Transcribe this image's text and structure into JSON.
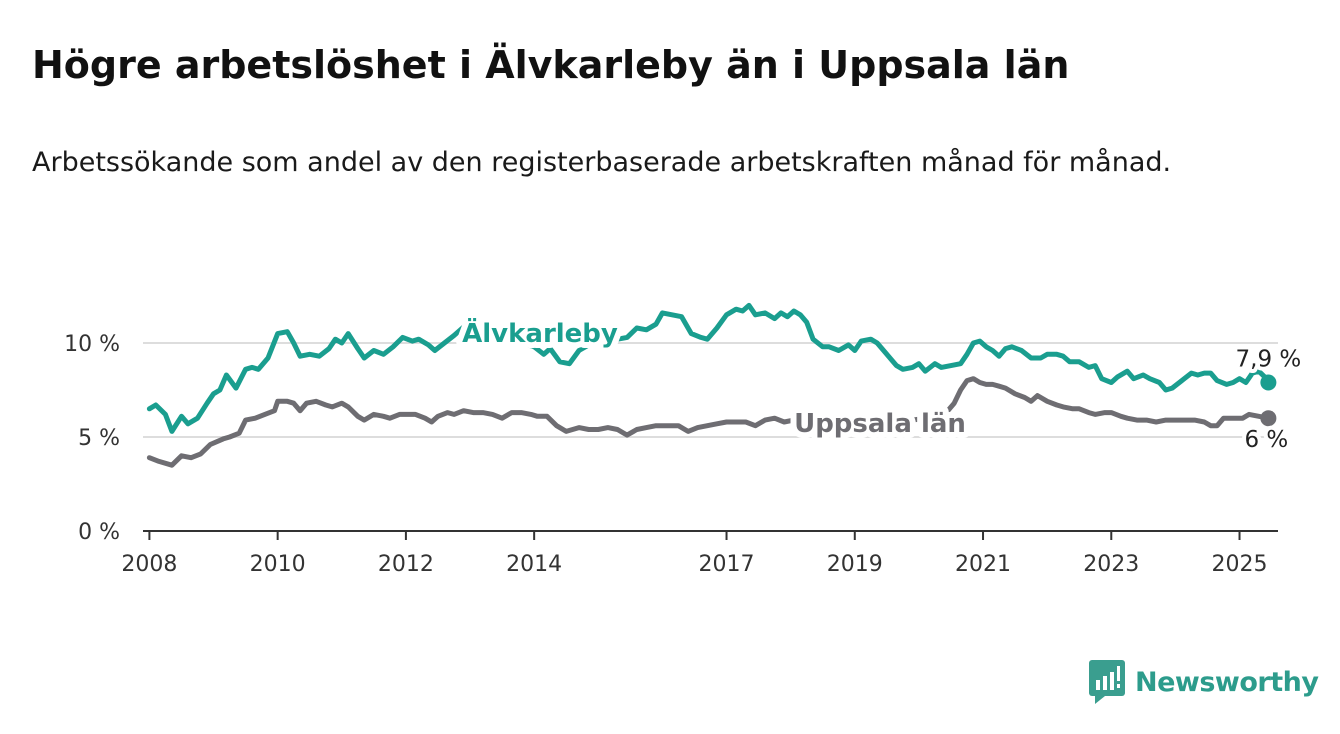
{
  "header": {
    "title": "Högre arbetslöshet i Älvkarleby än i Uppsala län",
    "subtitle": "Arbetssökande som andel av den registerbaserade arbetskraften månad för månad."
  },
  "brand": {
    "name": "Newsworthy",
    "icon": "newsworthy-logo-icon",
    "color": "#3a9e8f"
  },
  "colors": {
    "alvkarleby": "#1a9e8f",
    "uppsala": "#6e6d72",
    "axis": "#333333",
    "grid": "#dddddd"
  },
  "chart_data": {
    "type": "line",
    "x_unit": "year",
    "xlim": [
      2007.9,
      2025.6
    ],
    "ylim": [
      0,
      10
    ],
    "y_ticks": [
      {
        "value": 0,
        "label": "0 %"
      },
      {
        "value": 5,
        "label": "5 %"
      },
      {
        "value": 10,
        "label": "10 %"
      }
    ],
    "x_ticks": [
      {
        "value": 2008,
        "label": "2008"
      },
      {
        "value": 2010,
        "label": "2010"
      },
      {
        "value": 2012,
        "label": "2012"
      },
      {
        "value": 2014,
        "label": "2014"
      },
      {
        "value": 2017,
        "label": "2017"
      },
      {
        "value": 2019,
        "label": "2019"
      },
      {
        "value": 2021,
        "label": "2021"
      },
      {
        "value": 2023,
        "label": "2023"
      },
      {
        "value": 2025,
        "label": "2025"
      }
    ],
    "grid": true,
    "series": [
      {
        "key": "alvkarleby",
        "name": "Älvkarleby",
        "end_label": "7,9 %",
        "points": [
          [
            2008.0,
            6.5
          ],
          [
            2008.1,
            6.7
          ],
          [
            2008.25,
            6.2
          ],
          [
            2008.35,
            5.3
          ],
          [
            2008.5,
            6.1
          ],
          [
            2008.6,
            5.7
          ],
          [
            2008.75,
            6.0
          ],
          [
            2008.9,
            6.8
          ],
          [
            2009.0,
            7.3
          ],
          [
            2009.1,
            7.5
          ],
          [
            2009.2,
            8.3
          ],
          [
            2009.35,
            7.6
          ],
          [
            2009.5,
            8.6
          ],
          [
            2009.6,
            8.7
          ],
          [
            2009.7,
            8.6
          ],
          [
            2009.85,
            9.2
          ],
          [
            2010.0,
            10.5
          ],
          [
            2010.15,
            10.6
          ],
          [
            2010.25,
            10.0
          ],
          [
            2010.35,
            9.3
          ],
          [
            2010.5,
            9.4
          ],
          [
            2010.65,
            9.3
          ],
          [
            2010.8,
            9.7
          ],
          [
            2010.9,
            10.2
          ],
          [
            2011.0,
            10.0
          ],
          [
            2011.1,
            10.5
          ],
          [
            2011.25,
            9.7
          ],
          [
            2011.35,
            9.2
          ],
          [
            2011.5,
            9.6
          ],
          [
            2011.65,
            9.4
          ],
          [
            2011.8,
            9.8
          ],
          [
            2011.95,
            10.3
          ],
          [
            2012.1,
            10.1
          ],
          [
            2012.2,
            10.2
          ],
          [
            2012.35,
            9.9
          ],
          [
            2012.45,
            9.6
          ],
          [
            2012.6,
            10.0
          ],
          [
            2012.75,
            10.4
          ],
          [
            2012.95,
            11.0
          ],
          [
            2013.1,
            11.4
          ],
          [
            2013.25,
            10.8
          ],
          [
            2013.4,
            10.5
          ],
          [
            2013.6,
            10.2
          ],
          [
            2013.8,
            10.0
          ],
          [
            2014.0,
            9.8
          ],
          [
            2014.15,
            9.4
          ],
          [
            2014.25,
            9.7
          ],
          [
            2014.4,
            9.0
          ],
          [
            2014.55,
            8.9
          ],
          [
            2014.7,
            9.6
          ],
          [
            2014.85,
            9.9
          ],
          [
            2015.0,
            10.2
          ],
          [
            2015.15,
            10.4
          ],
          [
            2015.3,
            10.2
          ],
          [
            2015.45,
            10.3
          ],
          [
            2015.6,
            10.8
          ],
          [
            2015.75,
            10.7
          ],
          [
            2015.9,
            11.0
          ],
          [
            2016.0,
            11.6
          ],
          [
            2016.15,
            11.5
          ],
          [
            2016.3,
            11.4
          ],
          [
            2016.45,
            10.5
          ],
          [
            2016.6,
            10.3
          ],
          [
            2016.7,
            10.2
          ],
          [
            2016.85,
            10.8
          ],
          [
            2017.0,
            11.5
          ],
          [
            2017.15,
            11.8
          ],
          [
            2017.25,
            11.7
          ],
          [
            2017.35,
            12.0
          ],
          [
            2017.45,
            11.5
          ],
          [
            2017.6,
            11.6
          ],
          [
            2017.75,
            11.3
          ],
          [
            2017.85,
            11.6
          ],
          [
            2017.95,
            11.4
          ],
          [
            2018.05,
            11.7
          ],
          [
            2018.15,
            11.5
          ],
          [
            2018.25,
            11.1
          ],
          [
            2018.35,
            10.2
          ],
          [
            2018.5,
            9.8
          ],
          [
            2018.6,
            9.8
          ],
          [
            2018.75,
            9.6
          ],
          [
            2018.9,
            9.9
          ],
          [
            2019.0,
            9.6
          ],
          [
            2019.1,
            10.1
          ],
          [
            2019.25,
            10.2
          ],
          [
            2019.35,
            10.0
          ],
          [
            2019.5,
            9.4
          ],
          [
            2019.65,
            8.8
          ],
          [
            2019.75,
            8.6
          ],
          [
            2019.9,
            8.7
          ],
          [
            2020.0,
            8.9
          ],
          [
            2020.1,
            8.5
          ],
          [
            2020.25,
            8.9
          ],
          [
            2020.35,
            8.7
          ],
          [
            2020.5,
            8.8
          ],
          [
            2020.65,
            8.9
          ],
          [
            2020.75,
            9.4
          ],
          [
            2020.85,
            10.0
          ],
          [
            2020.95,
            10.1
          ],
          [
            2021.05,
            9.8
          ],
          [
            2021.15,
            9.6
          ],
          [
            2021.25,
            9.3
          ],
          [
            2021.35,
            9.7
          ],
          [
            2021.45,
            9.8
          ],
          [
            2021.6,
            9.6
          ],
          [
            2021.75,
            9.2
          ],
          [
            2021.9,
            9.2
          ],
          [
            2022.0,
            9.4
          ],
          [
            2022.15,
            9.4
          ],
          [
            2022.25,
            9.3
          ],
          [
            2022.35,
            9.0
          ],
          [
            2022.5,
            9.0
          ],
          [
            2022.65,
            8.7
          ],
          [
            2022.75,
            8.8
          ],
          [
            2022.85,
            8.1
          ],
          [
            2023.0,
            7.9
          ],
          [
            2023.1,
            8.2
          ],
          [
            2023.25,
            8.5
          ],
          [
            2023.35,
            8.1
          ],
          [
            2023.5,
            8.3
          ],
          [
            2023.6,
            8.1
          ],
          [
            2023.75,
            7.9
          ],
          [
            2023.85,
            7.5
          ],
          [
            2023.95,
            7.6
          ],
          [
            2024.1,
            8.0
          ],
          [
            2024.25,
            8.4
          ],
          [
            2024.35,
            8.3
          ],
          [
            2024.45,
            8.4
          ],
          [
            2024.55,
            8.4
          ],
          [
            2024.65,
            8.0
          ],
          [
            2024.8,
            7.8
          ],
          [
            2024.9,
            7.9
          ],
          [
            2025.0,
            8.1
          ],
          [
            2025.1,
            7.9
          ],
          [
            2025.2,
            8.4
          ],
          [
            2025.3,
            8.5
          ],
          [
            2025.42,
            8.1
          ],
          [
            2025.45,
            7.9
          ]
        ]
      },
      {
        "key": "uppsala",
        "name": "Uppsala län",
        "end_label": "6 %",
        "points": [
          [
            2008.0,
            3.9
          ],
          [
            2008.15,
            3.7
          ],
          [
            2008.35,
            3.5
          ],
          [
            2008.5,
            4.0
          ],
          [
            2008.65,
            3.9
          ],
          [
            2008.8,
            4.1
          ],
          [
            2008.95,
            4.6
          ],
          [
            2009.15,
            4.9
          ],
          [
            2009.25,
            5.0
          ],
          [
            2009.4,
            5.2
          ],
          [
            2009.5,
            5.9
          ],
          [
            2009.65,
            6.0
          ],
          [
            2009.8,
            6.2
          ],
          [
            2009.95,
            6.4
          ],
          [
            2010.0,
            6.9
          ],
          [
            2010.15,
            6.9
          ],
          [
            2010.25,
            6.8
          ],
          [
            2010.35,
            6.4
          ],
          [
            2010.45,
            6.8
          ],
          [
            2010.6,
            6.9
          ],
          [
            2010.75,
            6.7
          ],
          [
            2010.85,
            6.6
          ],
          [
            2011.0,
            6.8
          ],
          [
            2011.1,
            6.6
          ],
          [
            2011.25,
            6.1
          ],
          [
            2011.35,
            5.9
          ],
          [
            2011.5,
            6.2
          ],
          [
            2011.65,
            6.1
          ],
          [
            2011.75,
            6.0
          ],
          [
            2011.9,
            6.2
          ],
          [
            2012.05,
            6.2
          ],
          [
            2012.15,
            6.2
          ],
          [
            2012.3,
            6.0
          ],
          [
            2012.4,
            5.8
          ],
          [
            2012.5,
            6.1
          ],
          [
            2012.65,
            6.3
          ],
          [
            2012.75,
            6.2
          ],
          [
            2012.9,
            6.4
          ],
          [
            2013.05,
            6.3
          ],
          [
            2013.2,
            6.3
          ],
          [
            2013.35,
            6.2
          ],
          [
            2013.5,
            6.0
          ],
          [
            2013.65,
            6.3
          ],
          [
            2013.8,
            6.3
          ],
          [
            2013.95,
            6.2
          ],
          [
            2014.05,
            6.1
          ],
          [
            2014.2,
            6.1
          ],
          [
            2014.35,
            5.6
          ],
          [
            2014.5,
            5.3
          ],
          [
            2014.6,
            5.4
          ],
          [
            2014.7,
            5.5
          ],
          [
            2014.85,
            5.4
          ],
          [
            2015.0,
            5.4
          ],
          [
            2015.15,
            5.5
          ],
          [
            2015.3,
            5.4
          ],
          [
            2015.45,
            5.1
          ],
          [
            2015.6,
            5.4
          ],
          [
            2015.75,
            5.5
          ],
          [
            2015.9,
            5.6
          ],
          [
            2016.1,
            5.6
          ],
          [
            2016.25,
            5.6
          ],
          [
            2016.4,
            5.3
          ],
          [
            2016.55,
            5.5
          ],
          [
            2016.7,
            5.6
          ],
          [
            2016.85,
            5.7
          ],
          [
            2017.0,
            5.8
          ],
          [
            2017.15,
            5.8
          ],
          [
            2017.3,
            5.8
          ],
          [
            2017.45,
            5.6
          ],
          [
            2017.6,
            5.9
          ],
          [
            2017.75,
            6.0
          ],
          [
            2017.9,
            5.8
          ],
          [
            2018.05,
            5.9
          ],
          [
            2018.2,
            5.9
          ],
          [
            2018.35,
            6.1
          ],
          [
            2018.5,
            6.0
          ],
          [
            2018.7,
            6.1
          ],
          [
            2018.9,
            6.1
          ],
          [
            2019.1,
            6.0
          ],
          [
            2019.3,
            6.1
          ],
          [
            2019.5,
            6.0
          ],
          [
            2019.7,
            5.9
          ],
          [
            2019.9,
            5.9
          ],
          [
            2020.1,
            6.0
          ],
          [
            2020.3,
            6.1
          ],
          [
            2020.45,
            6.4
          ],
          [
            2020.55,
            6.8
          ],
          [
            2020.65,
            7.5
          ],
          [
            2020.75,
            8.0
          ],
          [
            2020.85,
            8.1
          ],
          [
            2020.95,
            7.9
          ],
          [
            2021.05,
            7.8
          ],
          [
            2021.15,
            7.8
          ],
          [
            2021.25,
            7.7
          ],
          [
            2021.35,
            7.6
          ],
          [
            2021.5,
            7.3
          ],
          [
            2021.65,
            7.1
          ],
          [
            2021.75,
            6.9
          ],
          [
            2021.85,
            7.2
          ],
          [
            2022.0,
            6.9
          ],
          [
            2022.15,
            6.7
          ],
          [
            2022.25,
            6.6
          ],
          [
            2022.4,
            6.5
          ],
          [
            2022.5,
            6.5
          ],
          [
            2022.65,
            6.3
          ],
          [
            2022.75,
            6.2
          ],
          [
            2022.9,
            6.3
          ],
          [
            2023.0,
            6.3
          ],
          [
            2023.15,
            6.1
          ],
          [
            2023.25,
            6.0
          ],
          [
            2023.4,
            5.9
          ],
          [
            2023.55,
            5.9
          ],
          [
            2023.7,
            5.8
          ],
          [
            2023.85,
            5.9
          ],
          [
            2024.0,
            5.9
          ],
          [
            2024.15,
            5.9
          ],
          [
            2024.3,
            5.9
          ],
          [
            2024.45,
            5.8
          ],
          [
            2024.55,
            5.6
          ],
          [
            2024.65,
            5.6
          ],
          [
            2024.75,
            6.0
          ],
          [
            2024.9,
            6.0
          ],
          [
            2025.05,
            6.0
          ],
          [
            2025.15,
            6.2
          ],
          [
            2025.3,
            6.1
          ],
          [
            2025.45,
            6.0
          ]
        ]
      }
    ]
  }
}
